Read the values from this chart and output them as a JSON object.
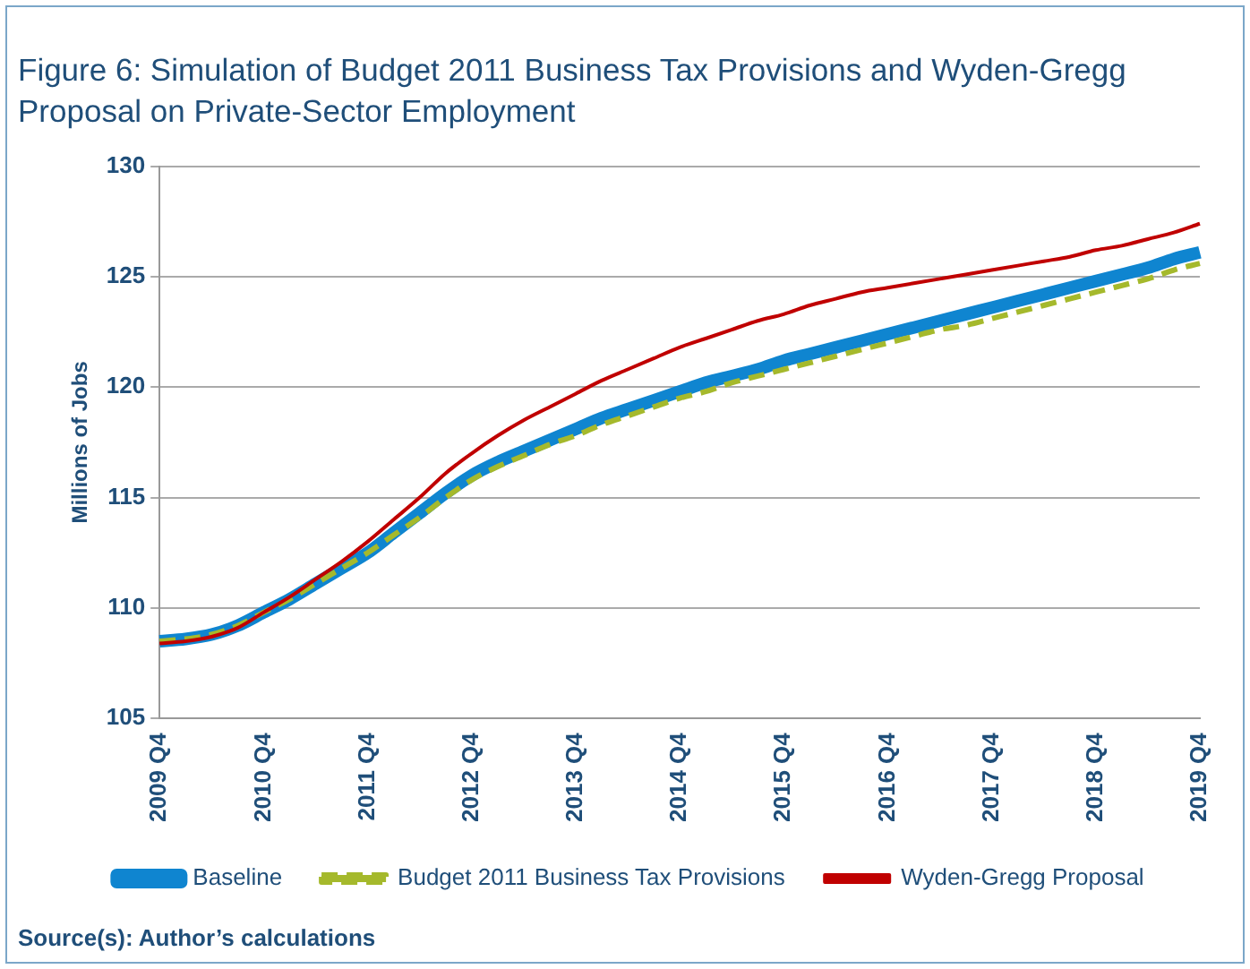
{
  "chart_data": {
    "type": "line",
    "title": "Figure 6: Simulation of Budget 2011 Business Tax Provisions and Wyden-Gregg Proposal on Private-Sector Employment",
    "ylabel": "Millions of Jobs",
    "categories": [
      "2009 Q4",
      null,
      null,
      null,
      "2010 Q4",
      null,
      null,
      null,
      "2011 Q4",
      null,
      null,
      null,
      "2012 Q4",
      null,
      null,
      null,
      "2013 Q4",
      null,
      null,
      null,
      "2014 Q4",
      null,
      null,
      null,
      "2015 Q4",
      null,
      null,
      null,
      "2016 Q4",
      null,
      null,
      null,
      "2017 Q4",
      null,
      null,
      null,
      "2018 Q4",
      null,
      null,
      null,
      "2019 Q4"
    ],
    "series": [
      {
        "name": "Baseline",
        "color": "#0f85d0",
        "line_style": "solid",
        "values": [
          108.5,
          108.6,
          108.8,
          109.2,
          109.8,
          110.4,
          111.1,
          111.8,
          112.5,
          113.4,
          114.3,
          115.2,
          116.0,
          116.6,
          117.1,
          117.6,
          118.1,
          118.6,
          119.0,
          119.4,
          119.8,
          120.2,
          120.5,
          120.8,
          121.2,
          121.5,
          121.8,
          122.1,
          122.4,
          122.7,
          123.0,
          123.3,
          123.6,
          123.9,
          124.2,
          124.5,
          124.8,
          125.1,
          125.4,
          125.8,
          126.1
        ]
      },
      {
        "name": "Budget 2011 Business Tax Provisions",
        "color": "#a5b92c",
        "line_style": "dashed",
        "values": [
          108.5,
          108.6,
          108.8,
          109.2,
          109.8,
          110.4,
          111.1,
          111.8,
          112.5,
          113.3,
          114.1,
          115.0,
          115.8,
          116.4,
          116.9,
          117.4,
          117.8,
          118.3,
          118.7,
          119.1,
          119.5,
          119.8,
          120.2,
          120.5,
          120.8,
          121.1,
          121.4,
          121.7,
          122.0,
          122.3,
          122.6,
          122.8,
          123.1,
          123.4,
          123.7,
          124.0,
          124.3,
          124.6,
          124.9,
          125.3,
          125.6
        ]
      },
      {
        "name": "Wyden-Gregg Proposal",
        "color": "#c00000",
        "line_style": "solid",
        "values": [
          108.4,
          108.5,
          108.7,
          109.1,
          109.8,
          110.5,
          111.3,
          112.1,
          113.0,
          114.0,
          115.0,
          116.1,
          117.0,
          117.8,
          118.5,
          119.1,
          119.7,
          120.3,
          120.8,
          121.3,
          121.8,
          122.2,
          122.6,
          123.0,
          123.3,
          123.7,
          124.0,
          124.3,
          124.5,
          124.7,
          124.9,
          125.1,
          125.3,
          125.5,
          125.7,
          125.9,
          126.2,
          126.4,
          126.7,
          127.0,
          127.4
        ]
      }
    ],
    "ylim": [
      105,
      130
    ],
    "yticks": [
      105,
      110,
      115,
      120,
      125,
      130
    ],
    "grid": "y",
    "legend": "bottom",
    "marker": "none",
    "annotations": [
      "Source(s): Author’s calculations"
    ]
  }
}
